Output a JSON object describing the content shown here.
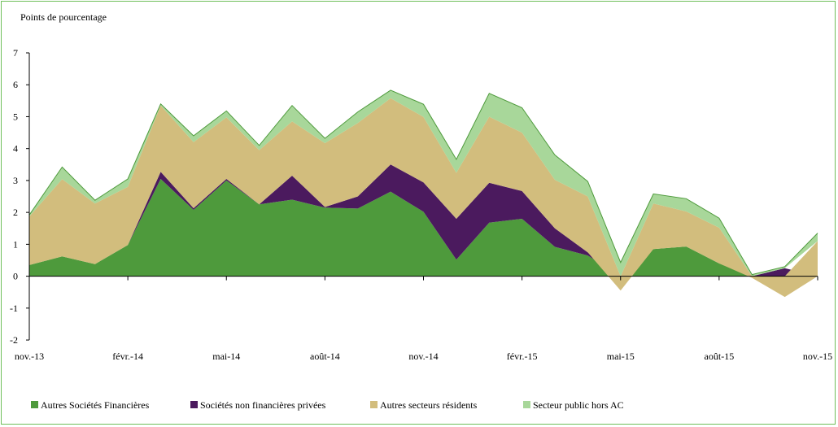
{
  "chart_data": {
    "type": "area",
    "stacked": true,
    "ylabel": "Points de pourcentage",
    "ylim": [
      -2,
      7
    ],
    "yticks": [
      7,
      6,
      5,
      4,
      3,
      2,
      1,
      0,
      -1,
      -2
    ],
    "grid": false,
    "legend_position": "bottom",
    "x": [
      "nov.-13",
      "déc.-13",
      "janv.-14",
      "févr.-14",
      "mars-14",
      "avr.-14",
      "mai-14",
      "juin-14",
      "juil.-14",
      "août-14",
      "sept.-14",
      "oct.-14",
      "nov.-14",
      "déc.-14",
      "janv.-15",
      "févr.-15",
      "mars-15",
      "avr.-15",
      "mai-15",
      "juin-15",
      "juil.-15",
      "août-15",
      "sept.-15",
      "oct.-15",
      "nov.-15"
    ],
    "tick_labels": [
      {
        "index": 0,
        "label": "nov.-13"
      },
      {
        "index": 3,
        "label": "févr.-14"
      },
      {
        "index": 6,
        "label": "mai-14"
      },
      {
        "index": 9,
        "label": "août-14"
      },
      {
        "index": 12,
        "label": "nov.-14"
      },
      {
        "index": 15,
        "label": "févr.-15"
      },
      {
        "index": 18,
        "label": "mai-15"
      },
      {
        "index": 21,
        "label": "août-15"
      },
      {
        "index": 24,
        "label": "nov.-15"
      }
    ],
    "series": [
      {
        "name": "Autres Sociétés Financières",
        "color": "#4e9a3c",
        "values": [
          0.35,
          0.62,
          0.38,
          0.98,
          3.05,
          2.08,
          3.0,
          2.25,
          2.4,
          2.15,
          2.12,
          2.65,
          2.02,
          0.52,
          1.68,
          1.8,
          0.92,
          0.65,
          0,
          0.85,
          0.93,
          0.4,
          0,
          0,
          0
        ]
      },
      {
        "name": "Sociétés non financières privées",
        "color": "#4b1a5e",
        "values": [
          0,
          0,
          0,
          0,
          0.22,
          0.05,
          0.05,
          0,
          0.75,
          0.02,
          0.38,
          0.85,
          0.92,
          1.28,
          1.25,
          0.87,
          0.58,
          0.1,
          0,
          0,
          0,
          0,
          0,
          0.25,
          0
        ]
      },
      {
        "name": "Autres secteurs résidents",
        "color": "#d2bd7d",
        "values": [
          1.52,
          2.42,
          1.9,
          1.82,
          2.08,
          2.07,
          1.93,
          1.7,
          1.7,
          2.0,
          2.3,
          2.08,
          2.05,
          1.44,
          2.07,
          1.83,
          1.52,
          1.75,
          -0.45,
          1.43,
          1.1,
          1.12,
          -0.05,
          -0.65,
          1.1
        ]
      },
      {
        "name": "Secteur public hors AC",
        "color": "#a8d79a",
        "values": [
          0.05,
          0.38,
          0.1,
          0.25,
          0.05,
          0.2,
          0.2,
          0.15,
          0.5,
          0.15,
          0.35,
          0.25,
          0.4,
          0.42,
          0.73,
          0.78,
          0.78,
          0.47,
          0.43,
          0.3,
          0.4,
          0.3,
          0.05,
          0.05,
          0.25
        ]
      }
    ]
  }
}
